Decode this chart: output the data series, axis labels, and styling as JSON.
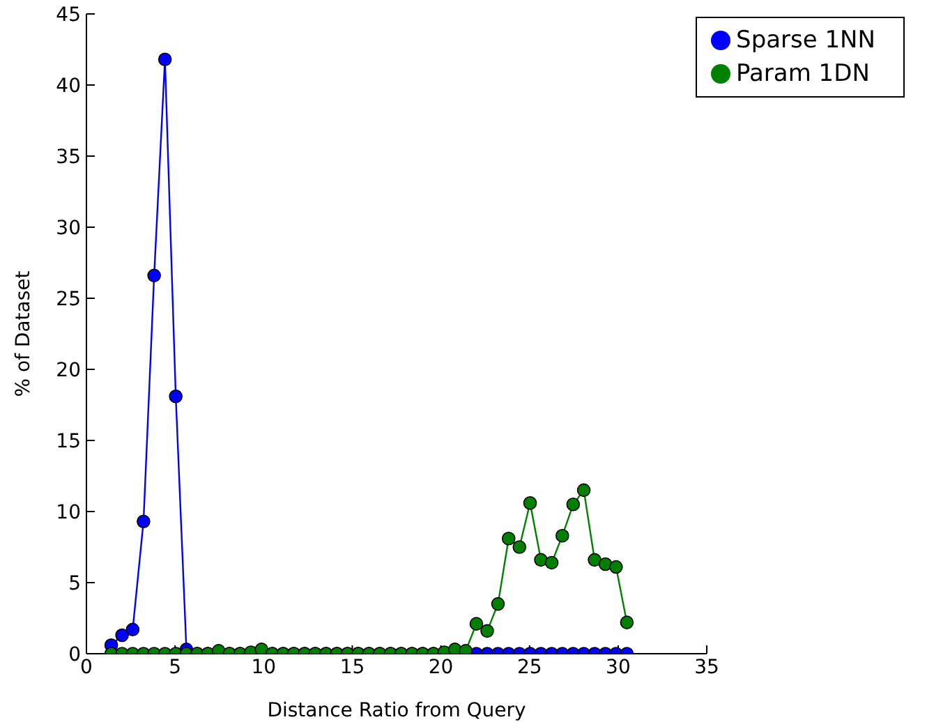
{
  "chart_data": {
    "type": "line",
    "xlabel": "Distance Ratio from Query",
    "ylabel": "% of Dataset",
    "x": [
      1.4,
      2.01,
      2.61,
      3.22,
      3.82,
      4.43,
      5.04,
      5.64,
      6.25,
      6.85,
      7.46,
      8.07,
      8.67,
      9.28,
      9.88,
      10.49,
      11.1,
      11.7,
      12.31,
      12.91,
      13.52,
      14.13,
      14.73,
      15.34,
      15.94,
      16.55,
      17.16,
      17.76,
      18.37,
      18.97,
      19.58,
      20.19,
      20.79,
      21.4,
      22.0,
      22.61,
      23.22,
      23.82,
      24.43,
      25.03,
      25.64,
      26.25,
      26.85,
      27.46,
      28.06,
      28.67,
      29.28,
      29.88,
      30.49
    ],
    "series": [
      {
        "name": "Sparse 1NN",
        "color": "#0000ff",
        "values": [
          0.6,
          1.3,
          1.7,
          9.3,
          26.6,
          41.8,
          18.1,
          0.3,
          0,
          0,
          0,
          0,
          0,
          0,
          0,
          0,
          0,
          0,
          0,
          0,
          0,
          0,
          0,
          0,
          0,
          0,
          0,
          0,
          0,
          0,
          0,
          0,
          0,
          0,
          0,
          0,
          0,
          0,
          0,
          0,
          0,
          0,
          0,
          0,
          0,
          0,
          0,
          0,
          0
        ]
      },
      {
        "name": "Param 1DN",
        "color": "#008000",
        "values": [
          0,
          0,
          0,
          0,
          0,
          0,
          0,
          0,
          0,
          0,
          0.2,
          0,
          0,
          0.1,
          0.3,
          0,
          0,
          0,
          0,
          0,
          0,
          0,
          0,
          0,
          0,
          0,
          0,
          0,
          0,
          0,
          0,
          0.1,
          0.3,
          0.2,
          2.1,
          1.6,
          3.5,
          8.1,
          7.5,
          10.6,
          6.6,
          6.4,
          8.3,
          10.5,
          11.5,
          6.6,
          6.3,
          6.1,
          2.2
        ]
      }
    ],
    "xlim": [
      0,
      35
    ],
    "xticks": [
      0,
      5,
      10,
      15,
      20,
      25,
      30,
      35
    ],
    "ylim": [
      0,
      45
    ],
    "yticks": [
      0,
      5,
      10,
      15,
      20,
      25,
      30,
      35,
      40,
      45
    ],
    "grid": false,
    "legend": "top right",
    "marker": "circle",
    "line_style": "solid"
  }
}
